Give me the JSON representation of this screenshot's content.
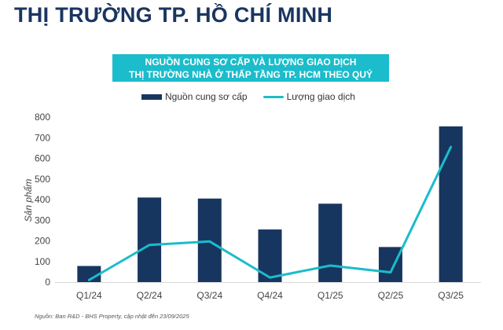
{
  "header": {
    "title": "THỊ TRƯỜNG TP. HỒ CHÍ MINH"
  },
  "chart_data": {
    "type": "bar",
    "title_line1": "NGUỒN CUNG SƠ CẤP VÀ LƯỢNG GIAO DỊCH",
    "title_line2": "THỊ TRƯỜNG NHÀ Ở THẤP TẦNG TP. HCM THEO QUÝ",
    "ylabel": "Sản phẩm",
    "ylim": [
      0,
      800
    ],
    "yticks": [
      0,
      100,
      200,
      300,
      400,
      500,
      600,
      700,
      800
    ],
    "categories": [
      "Q1/24",
      "Q2/24",
      "Q3/24",
      "Q4/24",
      "Q1/25",
      "Q2/25",
      "Q3/25"
    ],
    "series": [
      {
        "name": "Nguồn cung sơ cấp",
        "type": "bar",
        "color": "#17365f",
        "values": [
          78,
          410,
          405,
          255,
          380,
          170,
          755
        ]
      },
      {
        "name": "Lượng giao dịch",
        "type": "line",
        "color": "#1bbccb",
        "values": [
          10,
          180,
          197,
          22,
          80,
          47,
          655
        ]
      }
    ],
    "legend": "top",
    "grid": false
  },
  "footer": {
    "source": "Nguồn: Ban R&D - BHS Property, cập nhật đến 23/09/2025"
  }
}
